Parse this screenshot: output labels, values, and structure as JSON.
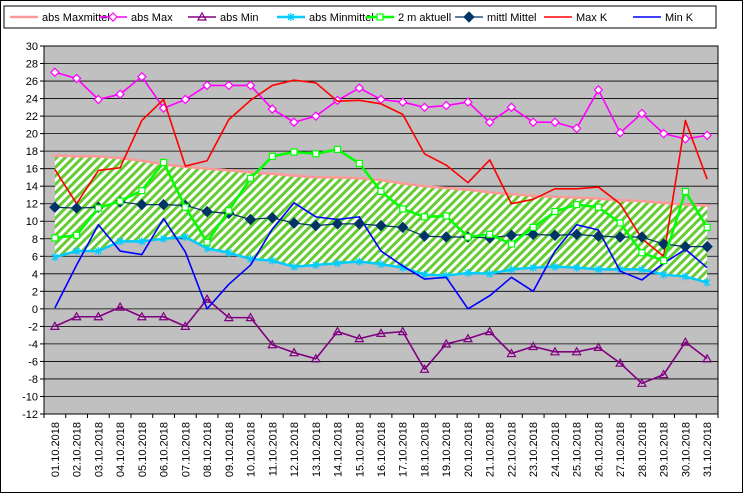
{
  "chart_data": {
    "type": "line",
    "x": [
      "01.10.2018",
      "02.10.2018",
      "03.10.2018",
      "04.10.2018",
      "05.10.2018",
      "06.10.2018",
      "07.10.2018",
      "08.10.2018",
      "09.10.2018",
      "10.10.2018",
      "11.10.2018",
      "12.10.2018",
      "13.10.2018",
      "14.10.2018",
      "15.10.2018",
      "16.10.2018",
      "17.10.2018",
      "18.10.2018",
      "19.10.2018",
      "20.10.2018",
      "21.10.2018",
      "22.10.2018",
      "23.10.2018",
      "24.10.2018",
      "25.10.2018",
      "26.10.2018",
      "27.10.2018",
      "28.10.2018",
      "29.10.2018",
      "30.10.2018",
      "31.10.2018"
    ],
    "ylim": [
      -12,
      30
    ],
    "yticks": [
      -12,
      -10,
      -8,
      -6,
      -4,
      -2,
      0,
      2,
      4,
      6,
      8,
      10,
      12,
      14,
      16,
      18,
      20,
      22,
      24,
      26,
      28,
      30
    ],
    "grid": true,
    "legend_position": "top",
    "band": {
      "upper_series": "abs Maxmittel",
      "lower_series": "abs Minmittel",
      "fill": "hatched green/white diagonal"
    },
    "series": [
      {
        "name": "abs Maxmittel",
        "color": "#FF9999",
        "marker": "dash",
        "values": [
          17.5,
          17.4,
          17.4,
          17.2,
          16.9,
          16.5,
          16.2,
          16.0,
          15.8,
          15.6,
          15.4,
          15.2,
          15.0,
          15.0,
          14.9,
          14.7,
          14.3,
          14.0,
          13.8,
          13.6,
          13.3,
          13.1,
          12.9,
          12.8,
          12.7,
          12.6,
          12.4,
          12.3,
          12.1,
          11.9,
          11.8
        ]
      },
      {
        "name": "abs Max",
        "color": "#FF00FF",
        "marker": "diamond-open",
        "values": [
          27.0,
          26.3,
          23.9,
          24.5,
          26.5,
          22.9,
          23.9,
          25.5,
          25.5,
          25.5,
          22.8,
          21.3,
          22.0,
          23.8,
          25.2,
          23.9,
          23.6,
          23.0,
          23.2,
          23.6,
          21.3,
          23.0,
          21.3,
          21.3,
          20.6,
          25.0,
          20.1,
          22.3,
          20.0,
          19.4,
          19.8
        ]
      },
      {
        "name": "abs Min",
        "color": "#800080",
        "marker": "triangle-open",
        "values": [
          -2.0,
          -0.9,
          -0.9,
          0.2,
          -0.9,
          -0.9,
          -2.0,
          1.1,
          -1.0,
          -1.0,
          -4.1,
          -5.0,
          -5.7,
          -2.6,
          -3.4,
          -2.8,
          -2.6,
          -6.9,
          -4.0,
          -3.4,
          -2.6,
          -5.1,
          -4.3,
          -4.9,
          -4.9,
          -4.4,
          -6.2,
          -8.5,
          -7.5,
          -3.8,
          -5.7
        ]
      },
      {
        "name": "abs Minmittel",
        "color": "#00CCFF",
        "marker": "asterisk",
        "values": [
          5.9,
          6.6,
          6.6,
          7.7,
          7.7,
          8.0,
          8.2,
          6.9,
          6.4,
          5.7,
          5.5,
          4.8,
          5.0,
          5.2,
          5.4,
          5.1,
          4.7,
          3.9,
          3.8,
          4.1,
          4.0,
          4.5,
          4.7,
          4.8,
          4.7,
          4.5,
          4.5,
          4.5,
          3.9,
          3.7,
          3.0
        ]
      },
      {
        "name": "2 m aktuell",
        "color": "#00FF00",
        "marker": "square-open",
        "values": [
          8.1,
          8.4,
          11.5,
          12.3,
          13.5,
          16.7,
          11.6,
          7.6,
          11.2,
          14.9,
          17.4,
          17.9,
          17.7,
          18.2,
          16.6,
          13.4,
          11.4,
          10.5,
          10.6,
          8.2,
          8.5,
          7.4,
          9.3,
          11.1,
          11.9,
          11.6,
          9.8,
          6.4,
          5.5,
          13.4,
          9.3
        ]
      },
      {
        "name": "mittl Mittel",
        "color": "#003366",
        "marker": "diamond-filled",
        "values": [
          11.6,
          11.5,
          11.6,
          12.2,
          11.9,
          11.9,
          11.8,
          11.1,
          10.9,
          10.2,
          10.4,
          9.8,
          9.5,
          9.7,
          9.7,
          9.5,
          9.3,
          8.3,
          8.2,
          8.2,
          8.1,
          8.4,
          8.5,
          8.4,
          8.5,
          8.3,
          8.2,
          8.2,
          7.4,
          7.1,
          7.1
        ]
      },
      {
        "name": "Max K",
        "color": "#FF0000",
        "marker": "none",
        "values": [
          15.9,
          12.0,
          15.8,
          16.1,
          21.5,
          23.9,
          16.3,
          16.9,
          21.6,
          23.8,
          25.5,
          26.1,
          25.8,
          23.7,
          23.8,
          23.4,
          22.2,
          17.7,
          16.4,
          14.4,
          17.0,
          12.0,
          12.5,
          13.7,
          13.7,
          13.9,
          12.0,
          8.0,
          6.0,
          21.5,
          14.8
        ]
      },
      {
        "name": "Min K",
        "color": "#0000FF",
        "marker": "none",
        "values": [
          0.1,
          5.0,
          9.6,
          6.6,
          6.2,
          10.3,
          6.5,
          0.0,
          2.8,
          5.0,
          9.1,
          12.1,
          10.5,
          10.2,
          10.5,
          6.6,
          4.9,
          3.4,
          3.6,
          0.0,
          1.5,
          3.6,
          2.0,
          6.6,
          9.6,
          9.0,
          4.3,
          3.3,
          5.2,
          6.8,
          4.7
        ]
      }
    ]
  }
}
